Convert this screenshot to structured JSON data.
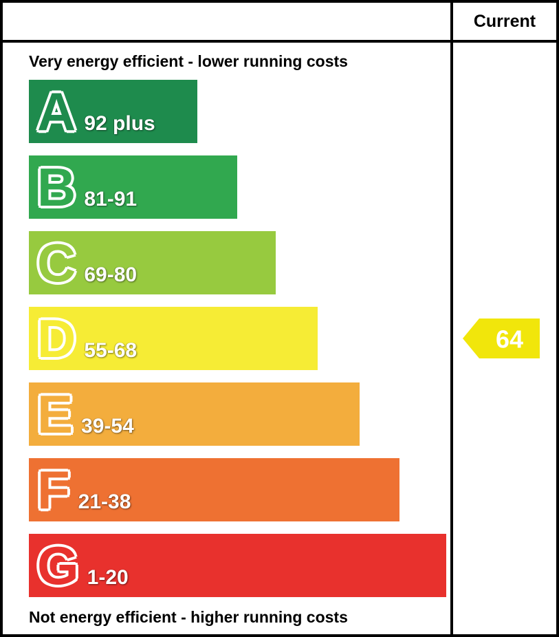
{
  "chart_data": {
    "type": "bar",
    "subtype": "epc-energy-efficiency-rating",
    "column_header": "Current",
    "top_label": "Very energy efficient - lower running costs",
    "bottom_label": "Not energy efficient - higher running costs",
    "bands": [
      {
        "letter": "A",
        "range": "92 plus",
        "color": "#1e8b4d",
        "width_pct": 40
      },
      {
        "letter": "B",
        "range": "81-91",
        "color": "#31a84f",
        "width_pct": 49.5
      },
      {
        "letter": "C",
        "range": "69-80",
        "color": "#97ca3f",
        "width_pct": 58.5
      },
      {
        "letter": "D",
        "range": "55-68",
        "color": "#f6ec35",
        "width_pct": 68.5
      },
      {
        "letter": "E",
        "range": "39-54",
        "color": "#f3ad3d",
        "width_pct": 78.5
      },
      {
        "letter": "F",
        "range": "21-38",
        "color": "#ee7132",
        "width_pct": 88
      },
      {
        "letter": "G",
        "range": "1-20",
        "color": "#e8312d",
        "width_pct": 99
      }
    ],
    "current": {
      "value": "64",
      "band": "D",
      "color": "#f1e60b"
    }
  }
}
